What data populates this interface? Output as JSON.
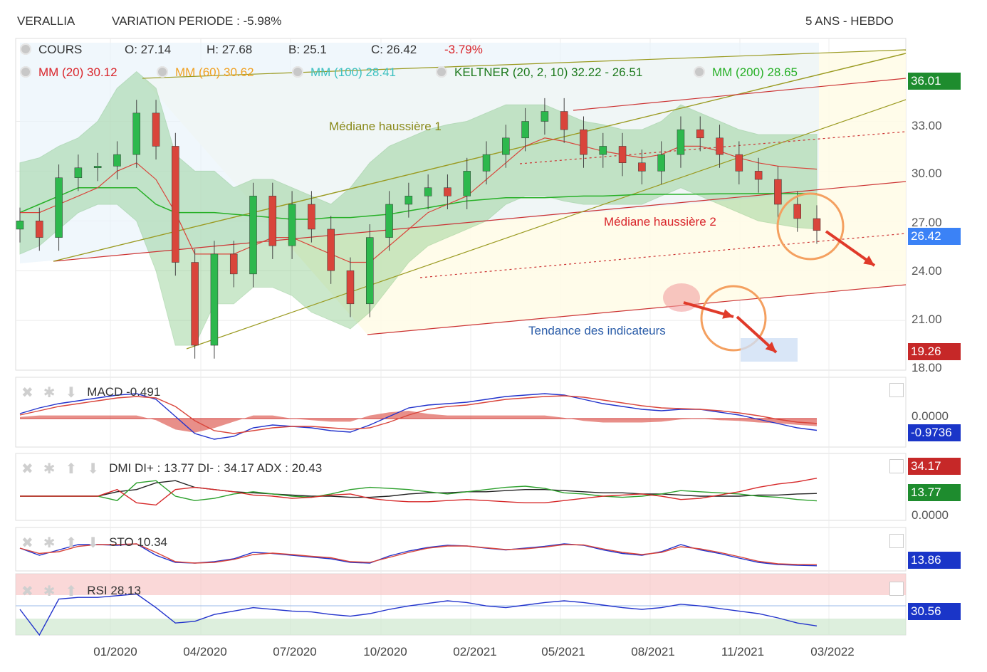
{
  "header": {
    "ticker": "VERALLIA",
    "variation": "VARIATION PERIODE : -5.98%",
    "period": "5 ANS - HEBDO"
  },
  "price_legend": {
    "cours": "COURS",
    "open": "O: 27.14",
    "high": "H: 27.68",
    "low": "B: 25.1",
    "close": "C: 26.42",
    "change": "-3.79%",
    "mm20": "MM (20)  30.12",
    "mm60": "MM (60)  30.62",
    "mm100": "MM (100)  28.41",
    "keltner": "KELTNER (20, 2, 10)  32.22 - 26.51",
    "mm200": "MM (200)  28.65"
  },
  "annotations": {
    "mediane1": "Médiane haussière 1",
    "mediane2": "Médiane haussière 2",
    "tendance": "Tendance des indicateurs"
  },
  "price_axis": {
    "ticks": [
      "33.00",
      "30.00",
      "27.00",
      "24.00",
      "21.00",
      "18.00"
    ],
    "tag_high": "36.01",
    "tag_last": "26.42",
    "tag_low": "19.26"
  },
  "macd": {
    "label": "MACD",
    "value": "-0.491",
    "tick_zero": "0.0000",
    "tag": "-0.9736"
  },
  "dmi": {
    "label": "DMI",
    "value": "DI+ : 13.77 DI- : 34.17 ADX : 20.43",
    "tag_minus": "34.17",
    "tag_plus": "13.77",
    "tick_zero": "0.0000"
  },
  "sto": {
    "label": "STO",
    "value": "10.34",
    "tag": "13.86"
  },
  "rsi": {
    "label": "RSI",
    "value": "28.13",
    "tag": "30.56"
  },
  "x_axis": [
    "01/2020",
    "04/2020",
    "07/2020",
    "10/2020",
    "02/2021",
    "05/2021",
    "08/2021",
    "11/2021",
    "03/2022"
  ],
  "colors": {
    "up": "#2db84d",
    "down": "#d9453b",
    "mm20": "#d9453b",
    "mm60": "#f0a020",
    "mm100": "#3cc0c0",
    "keltner": "#2a9a2a",
    "mm200": "#27b027",
    "tag_green": "#1e8c2e",
    "tag_blue": "#3b82f6",
    "tag_red": "#c62828",
    "tag_navy": "#1a35c8"
  },
  "chart_data": [
    {
      "type": "candlestick",
      "title": "VERALLIA",
      "x": [
        "2019-10-04",
        "2019-10-25",
        "2019-11-15",
        "2019-12-06",
        "2019-12-27",
        "2020-01-17",
        "2020-02-07",
        "2020-02-28",
        "2020-03-20",
        "2020-04-10",
        "2020-05-01",
        "2020-05-22",
        "2020-06-12",
        "2020-07-03",
        "2020-07-24",
        "2020-08-14",
        "2020-09-04",
        "2020-09-25",
        "2020-10-16",
        "2020-11-06",
        "2020-11-27",
        "2020-12-18",
        "2021-01-08",
        "2021-01-29",
        "2021-02-19",
        "2021-03-12",
        "2021-04-02",
        "2021-04-23",
        "2021-05-14",
        "2021-06-04",
        "2021-06-25",
        "2021-07-16",
        "2021-08-06",
        "2021-08-27",
        "2021-09-17",
        "2021-10-08",
        "2021-10-29",
        "2021-11-19",
        "2021-12-10",
        "2022-01-07",
        "2022-01-28",
        "2022-02-11"
      ],
      "close": [
        27.0,
        26.0,
        29.6,
        30.2,
        30.3,
        31.0,
        33.5,
        31.5,
        24.5,
        19.5,
        25.0,
        23.8,
        28.5,
        25.5,
        28.0,
        26.5,
        24.0,
        22.0,
        26.0,
        28.0,
        28.5,
        29.0,
        28.5,
        30.0,
        31.0,
        32.0,
        33.0,
        33.6,
        32.5,
        31.0,
        31.5,
        30.5,
        30.0,
        31.0,
        32.5,
        32.0,
        31.0,
        30.0,
        29.5,
        28.0,
        27.14,
        26.42
      ],
      "ylim": [
        18.0,
        38.0
      ],
      "keltner_upper": [
        30.5,
        30.8,
        31.5,
        32.0,
        33.0,
        35.0,
        36.0,
        35.0,
        31.0,
        30.0,
        30.0,
        29.0,
        29.5,
        29.5,
        29.0,
        28.5,
        28.0,
        29.0,
        30.5,
        31.5,
        32.0,
        32.5,
        32.8,
        33.0,
        33.5,
        34.0,
        34.0,
        34.0,
        33.5,
        33.0,
        32.8,
        32.5,
        32.5,
        33.0,
        34.0,
        33.5,
        33.0,
        32.5,
        32.2,
        32.2,
        32.2,
        32.22
      ],
      "keltner_lower": [
        25.0,
        25.5,
        26.5,
        27.5,
        28.0,
        28.0,
        27.0,
        24.0,
        19.5,
        19.5,
        22.0,
        22.0,
        23.0,
        23.0,
        22.5,
        21.5,
        21.0,
        20.5,
        21.5,
        23.0,
        24.5,
        25.5,
        26.0,
        26.5,
        27.0,
        28.0,
        28.5,
        28.5,
        28.2,
        28.0,
        28.0,
        28.0,
        28.0,
        28.5,
        29.0,
        28.5,
        28.0,
        27.5,
        27.0,
        26.8,
        26.6,
        26.51
      ],
      "mm20": [
        27.5,
        27.5,
        28.0,
        28.5,
        29.0,
        30.0,
        30.5,
        29.5,
        27.5,
        25.0,
        25.0,
        25.0,
        25.5,
        26.0,
        26.0,
        25.5,
        25.0,
        24.5,
        24.5,
        25.5,
        26.5,
        27.5,
        28.0,
        28.5,
        29.5,
        30.5,
        31.5,
        32.0,
        31.8,
        31.5,
        31.2,
        31.0,
        30.8,
        31.0,
        31.5,
        31.5,
        31.2,
        30.8,
        30.5,
        30.3,
        30.2,
        30.12
      ],
      "mm200": [
        27.5,
        28.0,
        28.5,
        29.0,
        29.0,
        29.0,
        29.0,
        28.0,
        27.5,
        27.5,
        27.5,
        27.4,
        27.3,
        27.2,
        27.1,
        27.1,
        27.2,
        27.2,
        27.3,
        27.4,
        27.6,
        27.8,
        28.0,
        28.2,
        28.3,
        28.4,
        28.4,
        28.4,
        28.45,
        28.5,
        28.5,
        28.55,
        28.6,
        28.6,
        28.6,
        28.62,
        28.63,
        28.64,
        28.65,
        28.65,
        28.65,
        28.65
      ]
    },
    {
      "type": "line",
      "title": "MACD",
      "series": [
        {
          "values": [
            0.2,
            0.6,
            0.9,
            1.1,
            1.3,
            1.5,
            1.6,
            1.2,
            0.0,
            -1.2,
            -1.6,
            -1.4,
            -0.8,
            -0.6,
            -0.7,
            -0.8,
            -1.0,
            -1.1,
            -0.6,
            0.0,
            0.6,
            0.8,
            0.9,
            1.0,
            1.2,
            1.4,
            1.5,
            1.6,
            1.5,
            1.2,
            0.9,
            0.7,
            0.5,
            0.4,
            0.5,
            0.5,
            0.3,
            0.1,
            -0.2,
            -0.5,
            -0.8,
            -0.9736
          ]
        },
        {
          "values": [
            0.1,
            0.4,
            0.7,
            0.9,
            1.1,
            1.3,
            1.4,
            1.3,
            0.7,
            -0.3,
            -1.0,
            -1.2,
            -1.0,
            -0.8,
            -0.7,
            -0.7,
            -0.8,
            -0.9,
            -0.8,
            -0.4,
            0.1,
            0.5,
            0.7,
            0.8,
            1.0,
            1.2,
            1.3,
            1.4,
            1.45,
            1.35,
            1.15,
            0.95,
            0.75,
            0.6,
            0.55,
            0.5,
            0.4,
            0.25,
            0.05,
            -0.2,
            -0.4,
            -0.491
          ]
        }
      ]
    },
    {
      "type": "line",
      "title": "DMI",
      "series": [
        {
          "values": [
            18,
            18,
            18,
            18,
            18,
            22,
            24,
            30,
            32,
            26,
            24,
            22,
            21,
            20,
            19,
            18,
            18,
            17,
            17,
            18,
            20,
            21,
            21,
            22,
            22,
            23,
            24,
            24,
            23,
            22,
            21,
            21,
            20,
            20,
            19,
            18,
            18,
            18,
            19,
            19,
            20,
            20.43
          ]
        },
        {
          "values": [
            18,
            18,
            18,
            18,
            18,
            14,
            30,
            32,
            18,
            14,
            16,
            20,
            22,
            20,
            18,
            17,
            20,
            24,
            26,
            25,
            24,
            22,
            20,
            22,
            24,
            26,
            27,
            25,
            21,
            20,
            18,
            17,
            18,
            20,
            23,
            22,
            21,
            20,
            18,
            17,
            15,
            13.77
          ]
        },
        {
          "values": [
            18,
            18,
            18,
            18,
            18,
            24,
            12,
            10,
            24,
            26,
            24,
            22,
            19,
            18,
            16,
            17,
            19,
            20,
            16,
            14,
            13,
            13,
            14,
            15,
            14,
            13,
            12,
            12,
            14,
            16,
            18,
            19,
            20,
            18,
            15,
            16,
            19,
            22,
            26,
            29,
            31,
            34.17
          ]
        }
      ]
    },
    {
      "type": "line",
      "title": "STO",
      "series": [
        {
          "values": [
            60,
            40,
            55,
            70,
            70,
            68,
            72,
            40,
            20,
            18,
            22,
            30,
            48,
            45,
            40,
            35,
            30,
            20,
            18,
            38,
            52,
            62,
            68,
            66,
            60,
            55,
            60,
            65,
            72,
            68,
            55,
            45,
            40,
            50,
            70,
            55,
            45,
            32,
            20,
            14,
            12,
            10.34
          ]
        },
        {
          "values": [
            60,
            45,
            50,
            65,
            70,
            70,
            72,
            48,
            22,
            18,
            20,
            28,
            42,
            46,
            42,
            37,
            33,
            22,
            20,
            34,
            48,
            60,
            66,
            66,
            61,
            56,
            58,
            63,
            70,
            69,
            58,
            48,
            42,
            48,
            64,
            58,
            48,
            36,
            23,
            16,
            14,
            13.86
          ]
        }
      ]
    },
    {
      "type": "line",
      "title": "RSI",
      "series": [
        {
          "values": [
            50,
            20,
            62,
            64,
            64,
            66,
            68,
            52,
            34,
            36,
            44,
            48,
            52,
            50,
            48,
            47,
            44,
            42,
            45,
            50,
            54,
            57,
            60,
            58,
            54,
            52,
            55,
            58,
            60,
            58,
            55,
            52,
            50,
            52,
            56,
            54,
            51,
            48,
            45,
            40,
            34,
            30.56
          ]
        }
      ]
    }
  ]
}
